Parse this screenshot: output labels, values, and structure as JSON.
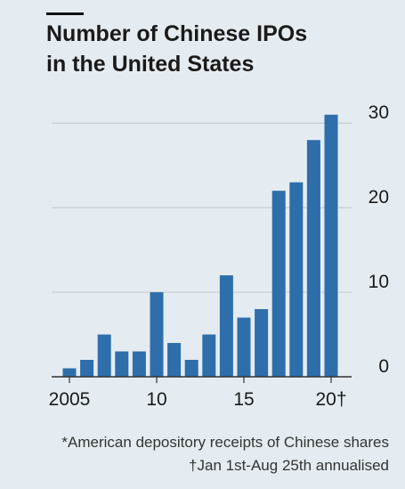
{
  "chart_data": {
    "type": "bar",
    "title": [
      "Number of Chinese IPOs",
      "in the United States"
    ],
    "categories": [
      "2005",
      null,
      null,
      null,
      null,
      "10",
      null,
      null,
      null,
      null,
      "15",
      null,
      null,
      null,
      null,
      "20†"
    ],
    "values": [
      1,
      2,
      5,
      3,
      3,
      10,
      4,
      2,
      5,
      12,
      7,
      8,
      22,
      23,
      28,
      31
    ],
    "color": "#2e6eaa",
    "ylim": [
      0,
      31.5
    ],
    "yticks": [
      0,
      10,
      20,
      30
    ],
    "grid": true,
    "footnotes": [
      "*American depository receipts of Chinese shares",
      "†Jan 1st-Aug 25th annualised"
    ]
  }
}
